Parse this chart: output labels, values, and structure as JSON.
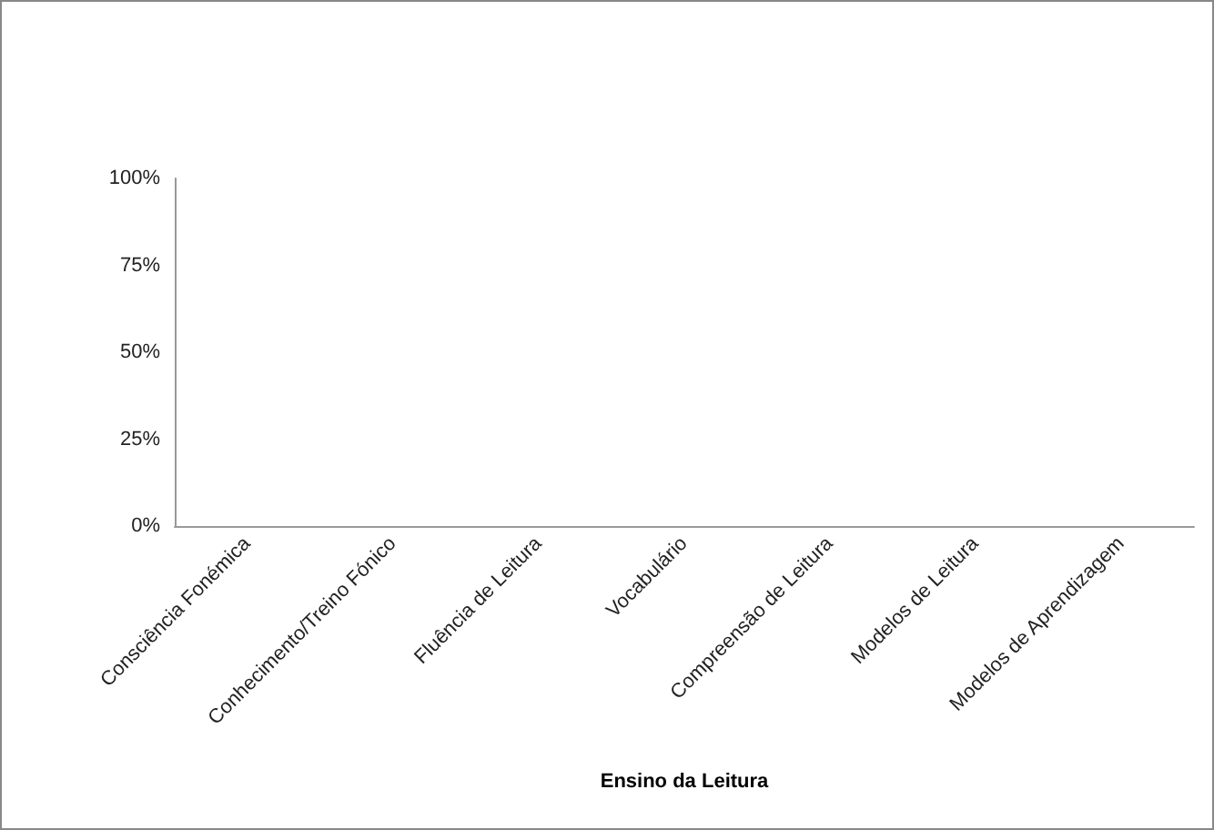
{
  "chart_data": {
    "type": "bar",
    "xlabel": "Ensino da Leitura",
    "categories": [
      "Consciência Fonémica",
      "Conhecimento/Treino Fónico",
      "Fluência de Leitura",
      "Vocabulário",
      "Compreensão de Leitura",
      "Modelos de Leitura",
      "Modelos de Aprendizagem"
    ],
    "values": [
      0,
      0,
      0,
      0,
      0,
      0,
      0
    ],
    "ylim": [
      0,
      100
    ],
    "yticks": [
      {
        "value": 0,
        "label": "0%"
      },
      {
        "value": 25,
        "label": "25%"
      },
      {
        "value": 50,
        "label": "50%"
      },
      {
        "value": 75,
        "label": "75%"
      },
      {
        "value": 100,
        "label": "100%"
      }
    ],
    "grid": false
  }
}
